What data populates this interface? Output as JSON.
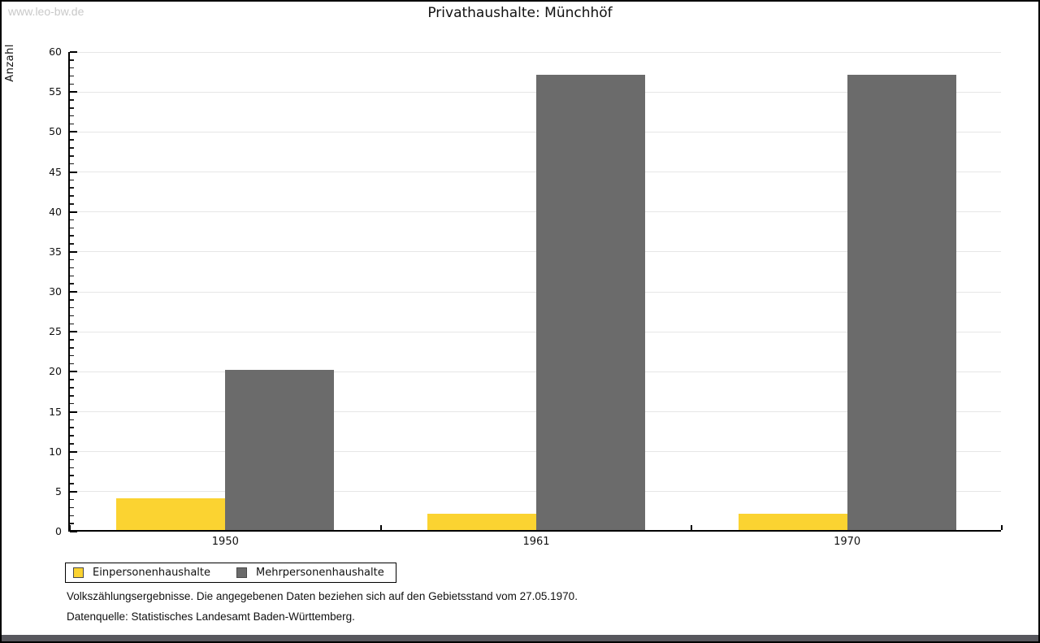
{
  "page": {
    "watermark": "www.leo-bw.de",
    "title": "Privathaushalte: Münchhöf"
  },
  "chart_data": {
    "type": "bar",
    "title": "Privathaushalte: Münchhöf",
    "ylabel": "Anzahl",
    "ylim": [
      0,
      60
    ],
    "ytick_step": 5,
    "yminor_step": 1,
    "grid": true,
    "legend_position": "bottom-left",
    "categories": [
      "1950",
      "1961",
      "1970"
    ],
    "series": [
      {
        "name": "Einpersonenhaushalte",
        "color": "#fbd331",
        "values": [
          4,
          2,
          2
        ]
      },
      {
        "name": "Mehrpersonenhaushalte",
        "color": "#6b6b6b",
        "values": [
          20,
          57,
          57
        ]
      }
    ]
  },
  "footnotes": {
    "line1": "Volkszählungsergebnisse. Die angegebenen Daten beziehen sich auf den Gebietsstand vom 27.05.1970.",
    "line2": "Datenquelle: Statistisches Landesamt Baden-Württemberg."
  }
}
